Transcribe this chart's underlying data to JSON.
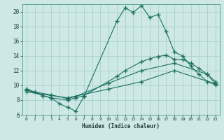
{
  "xlabel": "Humidex (Indice chaleur)",
  "background_color": "#cde8e5",
  "grid_color": "#aacfcc",
  "line_color": "#1a7060",
  "xlim": [
    -0.5,
    23.5
  ],
  "ylim": [
    6,
    21
  ],
  "xticks": [
    0,
    1,
    2,
    3,
    4,
    5,
    6,
    7,
    8,
    9,
    10,
    11,
    12,
    13,
    14,
    15,
    16,
    17,
    18,
    19,
    20,
    21,
    22,
    23
  ],
  "yticks": [
    6,
    8,
    10,
    12,
    14,
    16,
    18,
    20
  ],
  "series": [
    {
      "x": [
        0,
        1,
        2,
        3,
        4,
        5,
        6,
        7,
        11,
        12,
        13,
        14,
        15,
        16,
        17,
        18,
        19,
        20,
        21,
        22,
        23
      ],
      "y": [
        9.5,
        9.1,
        8.6,
        8.3,
        7.5,
        7.0,
        6.5,
        8.5,
        18.7,
        20.5,
        19.9,
        20.8,
        19.2,
        19.6,
        17.3,
        14.5,
        14.0,
        12.6,
        11.5,
        10.5,
        10.1
      ]
    },
    {
      "x": [
        0,
        2,
        3,
        5,
        6,
        7,
        11,
        12,
        14,
        15,
        16,
        17,
        18,
        19,
        20,
        21,
        22,
        23
      ],
      "y": [
        9.4,
        8.6,
        8.3,
        8.0,
        8.3,
        8.6,
        11.2,
        12.0,
        13.2,
        13.6,
        13.9,
        14.1,
        13.5,
        13.5,
        13.0,
        12.3,
        11.5,
        10.2
      ]
    },
    {
      "x": [
        0,
        3,
        5,
        6,
        10,
        14,
        18,
        22,
        23
      ],
      "y": [
        9.3,
        8.7,
        8.2,
        8.5,
        10.3,
        12.0,
        13.0,
        11.5,
        10.5
      ]
    },
    {
      "x": [
        0,
        5,
        10,
        14,
        18,
        23
      ],
      "y": [
        9.1,
        8.3,
        9.5,
        10.5,
        12.0,
        10.2
      ]
    }
  ]
}
